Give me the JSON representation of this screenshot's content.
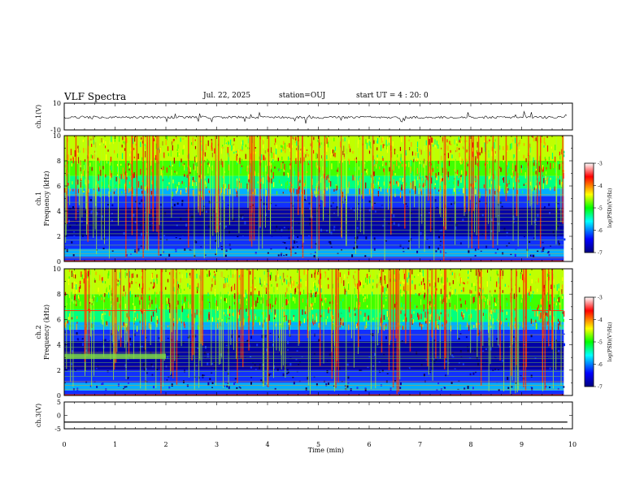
{
  "chart_data": {
    "type": "heatmap",
    "title": "VLF Spectra",
    "date": "Jul. 22, 2025",
    "station": "station=OUJ",
    "start_ut": "start UT =  4 : 20: 0",
    "xlabel": "Time (min)",
    "xlim": [
      0,
      10
    ],
    "x_ticks": [
      "0",
      "1",
      "2",
      "3",
      "4",
      "5",
      "6",
      "7",
      "8",
      "9",
      "10"
    ],
    "panels": [
      {
        "id": "ch1-waveform",
        "ylabel": "ch.1(V)",
        "ylim": [
          -10,
          10
        ],
        "y_ticks": [
          "10",
          "-10"
        ]
      },
      {
        "id": "ch1-spectrogram",
        "ylabel_top": "ch.1",
        "ylabel": "Frequency (kHz)",
        "ylim": [
          0,
          10
        ],
        "y_ticks": [
          "0",
          "2",
          "4",
          "6",
          "8",
          "10"
        ]
      },
      {
        "id": "ch2-spectrogram",
        "ylabel_top": "ch.2",
        "ylabel": "Frequency (kHz)",
        "ylim": [
          0,
          10
        ],
        "y_ticks": [
          "0",
          "2",
          "4",
          "6",
          "8",
          "10"
        ]
      },
      {
        "id": "ch3-waveform",
        "ylabel": "ch.3(V)",
        "ylim": [
          -5,
          5
        ],
        "y_ticks": [
          "5",
          "0",
          "-5"
        ],
        "trace_level": -2.5
      }
    ],
    "colorbar": {
      "label": "log(PSD)(V²/Hz)",
      "range": [
        -7,
        -3
      ],
      "ticks": [
        "-3",
        "-4",
        "-5",
        "-6",
        "-7"
      ],
      "colors": [
        "#000080",
        "#0000ff",
        "#00ffff",
        "#00ff00",
        "#ffff00",
        "#ff0000",
        "#ffffff"
      ]
    }
  }
}
